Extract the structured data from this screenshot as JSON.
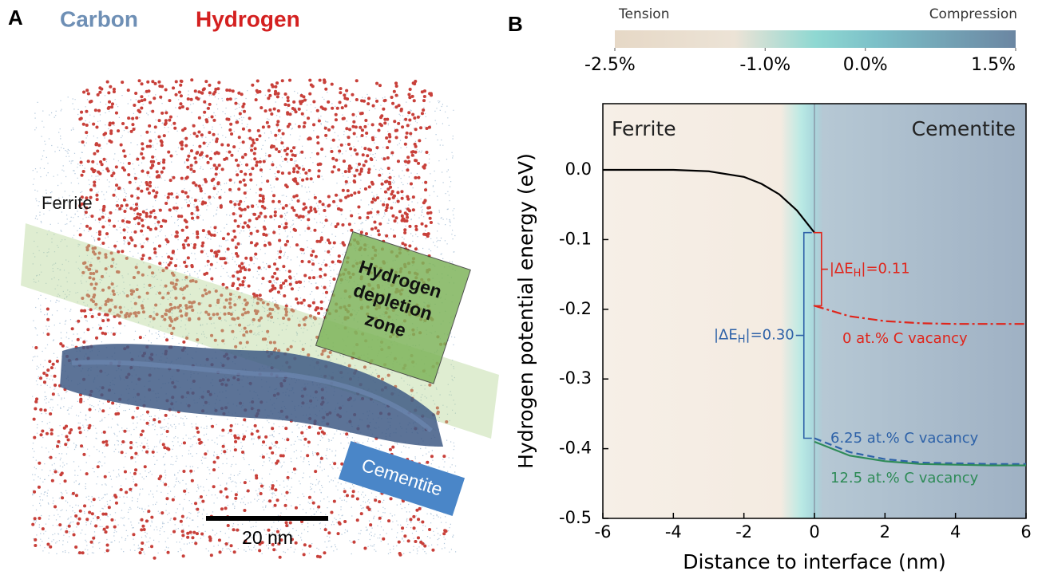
{
  "panel_a": {
    "letter": "A",
    "legend": [
      "Carbon",
      "Hydrogen"
    ],
    "ferrite_label": "Ferrite",
    "zone_label": [
      "Hydrogen",
      "depletion",
      "zone"
    ],
    "cementite_label": "Cementite",
    "scale_bar": "20 nm"
  },
  "chart_data": {
    "type": "line",
    "letter": "B",
    "x_label": "Distance to interface (nm)",
    "y_label": "Hydrogen potential energy (eV)",
    "regions": [
      "Ferrite",
      "Cementite"
    ],
    "x": [
      -6,
      -5,
      -4,
      -3,
      -2,
      -1.5,
      -1,
      -0.5,
      0,
      1,
      2,
      3,
      4,
      5,
      6
    ],
    "series": [
      {
        "color": "#000000",
        "linestyle": "solid",
        "values": [
          0,
          0,
          0,
          -0.002,
          -0.01,
          -0.02,
          -0.035,
          -0.058,
          -0.09,
          null,
          null,
          null,
          null,
          null,
          null
        ]
      },
      {
        "name": "0 at.% C vacancy",
        "color": "#e0251b",
        "linestyle": "dash-dot",
        "values": [
          null,
          null,
          null,
          null,
          null,
          null,
          null,
          null,
          -0.195,
          -0.21,
          -0.217,
          -0.22,
          -0.221,
          -0.221,
          -0.221
        ]
      },
      {
        "name": "6.25 at.% C vacancy",
        "color": "#2e62a8",
        "linestyle": "dashed",
        "values": [
          null,
          null,
          null,
          null,
          null,
          null,
          null,
          null,
          -0.385,
          -0.405,
          -0.415,
          -0.42,
          -0.421,
          -0.422,
          -0.422
        ]
      },
      {
        "name": "12.5 at.% C vacancy",
        "color": "#2e8b57",
        "linestyle": "solid",
        "values": [
          null,
          null,
          null,
          null,
          null,
          null,
          null,
          null,
          -0.39,
          -0.41,
          -0.418,
          -0.422,
          -0.423,
          -0.424,
          -0.424
        ]
      }
    ],
    "annotations": [
      {
        "prefix": "|ΔE",
        "subscript": "H",
        "suffix": "|=0.11",
        "color": "#e0251b"
      },
      {
        "prefix": "|ΔE",
        "subscript": "H",
        "suffix": "|=0.30",
        "color": "#2e62a8"
      }
    ],
    "xlim": [
      -6,
      6
    ],
    "xticks": [
      -6,
      -4,
      -2,
      0,
      2,
      4,
      6
    ],
    "ylim": [
      -0.5,
      0.095
    ],
    "yticks": [
      -0.5,
      -0.4,
      -0.3,
      -0.2,
      -0.1,
      {
        "value": 0,
        "label": "0.0"
      }
    ],
    "colorbar": {
      "end_labels": [
        "Tension",
        "Compression"
      ],
      "lim": [
        -2.5,
        1.5
      ],
      "ticks": [
        {
          "value": -2.5,
          "label": "-2.5%"
        },
        {
          "value": -1.0,
          "label": "-1.0%"
        },
        {
          "value": 0,
          "label": "0.0%"
        },
        {
          "value": 1.5,
          "label": "1.5%"
        }
      ]
    }
  }
}
